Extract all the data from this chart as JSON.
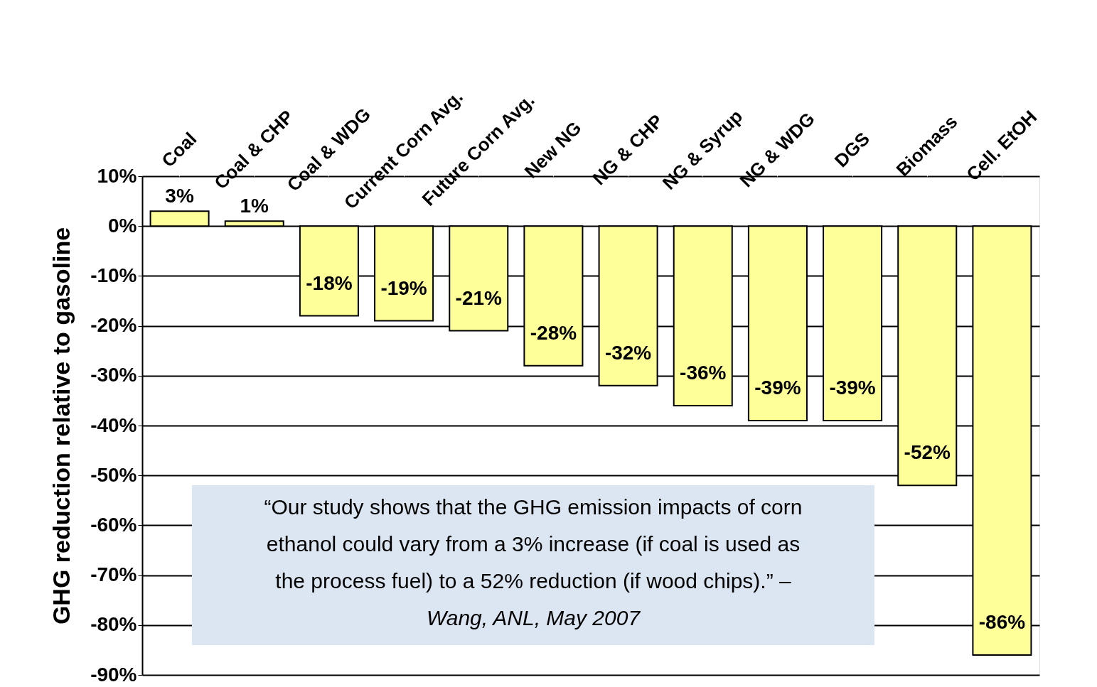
{
  "chart_data": {
    "type": "bar",
    "ylabel": "GHG reduction relative to gasoline",
    "categories": [
      "Coal",
      "Coal & CHP",
      "Coal & WDG",
      "Current Corn Avg.",
      "Future Corn Avg.",
      "New NG",
      "NG & CHP",
      "NG & Syrup",
      "NG & WDG",
      "DGS",
      "Biomass",
      "Cell. EtOH"
    ],
    "values": [
      3,
      1,
      -18,
      -19,
      -21,
      -28,
      -32,
      -36,
      -39,
      -39,
      -52,
      -86
    ],
    "value_labels": [
      "3%",
      "1%",
      "-18%",
      "-19%",
      "-21%",
      "-28%",
      "-32%",
      "-36%",
      "-39%",
      "-39%",
      "-52%",
      "-86%"
    ],
    "color": "#ffff99",
    "ylim": [
      -90,
      10
    ],
    "yticks": [
      {
        "value": 10,
        "label": "10%"
      },
      {
        "value": 0,
        "label": "0%"
      },
      {
        "value": -10,
        "label": "-10%"
      },
      {
        "value": -20,
        "label": "-20%"
      },
      {
        "value": -30,
        "label": "-30%"
      },
      {
        "value": -40,
        "label": "-40%"
      },
      {
        "value": -50,
        "label": "-50%"
      },
      {
        "value": -60,
        "label": "-60%"
      },
      {
        "value": -70,
        "label": "-70%"
      },
      {
        "value": -80,
        "label": "-80%"
      },
      {
        "value": -90,
        "label": "-90%"
      }
    ],
    "grid": "y",
    "annotations": [
      "“Our study shows that the GHG emission impacts of corn\nethanol could vary from a 3% increase (if coal is used as\nthe process fuel) to a 52% reduction (if wood chips).” –",
      "Wang, ANL, May 2007"
    ]
  }
}
